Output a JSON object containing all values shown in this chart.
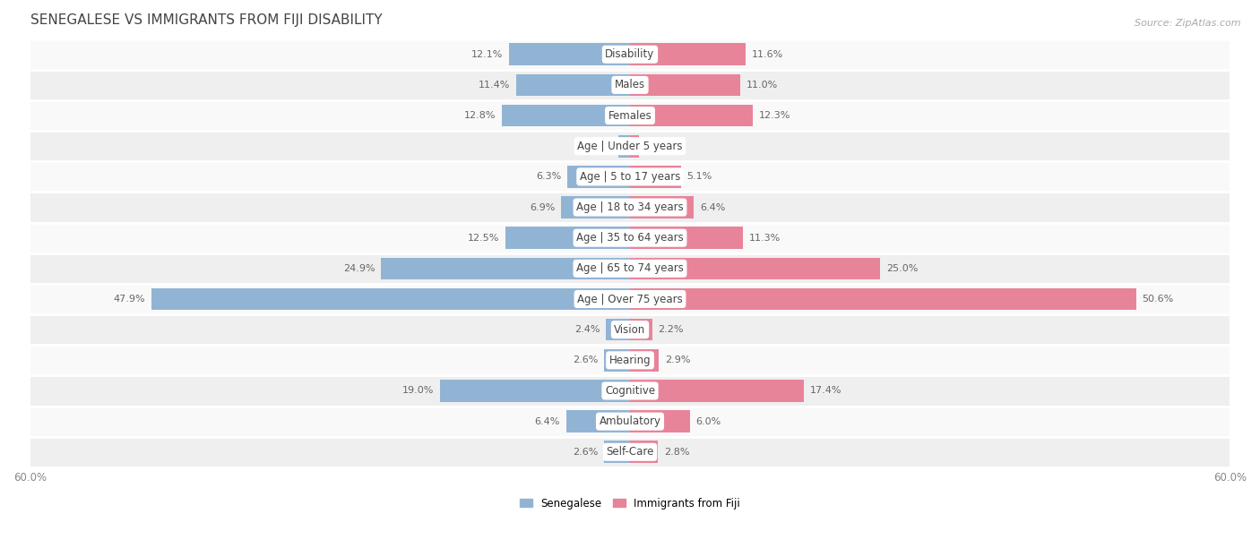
{
  "title": "SENEGALESE VS IMMIGRANTS FROM FIJI DISABILITY",
  "source": "Source: ZipAtlas.com",
  "categories": [
    "Disability",
    "Males",
    "Females",
    "Age | Under 5 years",
    "Age | 5 to 17 years",
    "Age | 18 to 34 years",
    "Age | 35 to 64 years",
    "Age | 65 to 74 years",
    "Age | Over 75 years",
    "Vision",
    "Hearing",
    "Cognitive",
    "Ambulatory",
    "Self-Care"
  ],
  "senegalese": [
    12.1,
    11.4,
    12.8,
    1.2,
    6.3,
    6.9,
    12.5,
    24.9,
    47.9,
    2.4,
    2.6,
    19.0,
    6.4,
    2.6
  ],
  "fiji": [
    11.6,
    11.0,
    12.3,
    0.92,
    5.1,
    6.4,
    11.3,
    25.0,
    50.6,
    2.2,
    2.9,
    17.4,
    6.0,
    2.8
  ],
  "blue_color": "#92b4d4",
  "pink_color": "#e8849a",
  "bar_height": 0.72,
  "xlim": 60.0,
  "row_bg_light": "#f9f9f9",
  "row_bg_dark": "#efefef",
  "fig_bg": "#ffffff",
  "title_fontsize": 11,
  "label_fontsize": 8.5,
  "value_fontsize": 8,
  "legend_fontsize": 8.5,
  "source_fontsize": 8
}
